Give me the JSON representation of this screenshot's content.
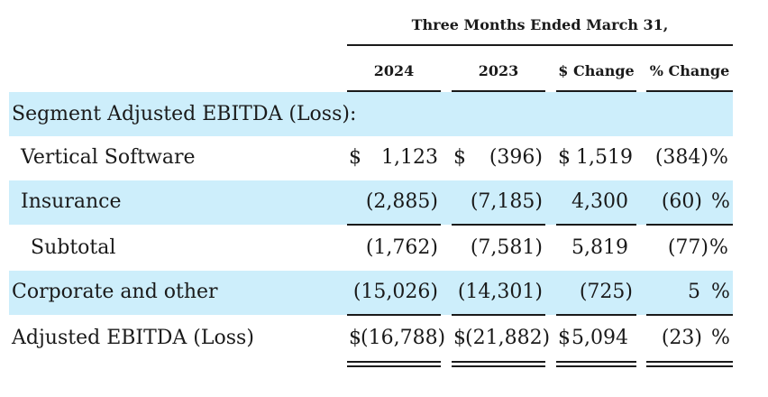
{
  "header": {
    "period": "Three Months Ended March 31,",
    "columns": [
      "2024",
      "2023",
      "$ Change",
      "% Change"
    ]
  },
  "section_title": "Segment Adjusted EBITDA (Loss):",
  "rows": [
    {
      "label": "Vertical Software",
      "c2024_sym": "$",
      "c2024": "1,123",
      "c2023_sym": "$",
      "c2023": "(396)",
      "chg_sym": "$",
      "chg": "1,519",
      "pct": "(384)",
      "pct_sym": "%"
    },
    {
      "label": "Insurance",
      "c2024": "(2,885)",
      "c2023": "(7,185)",
      "chg": "4,300",
      "pct": "(60)",
      "pct_sym": "%"
    },
    {
      "label": "Subtotal",
      "c2024": "(1,762)",
      "c2023": "(7,581)",
      "chg": "5,819",
      "pct": "(77)",
      "pct_sym": "%"
    },
    {
      "label": "Corporate and other",
      "c2024": "(15,026)",
      "c2023": "(14,301)",
      "chg": "(725)",
      "pct": "5",
      "pct_sym": "%"
    },
    {
      "label": "Adjusted EBITDA (Loss)",
      "c2024_sym": "$",
      "c2024": "(16,788)",
      "c2023_sym": "$",
      "c2023": "(21,882)",
      "chg_sym": "$",
      "chg": "5,094",
      "pct": "(23)",
      "pct_sym": "%"
    }
  ],
  "colors": {
    "band": "#cdeefb",
    "text": "#1a1a1a"
  }
}
